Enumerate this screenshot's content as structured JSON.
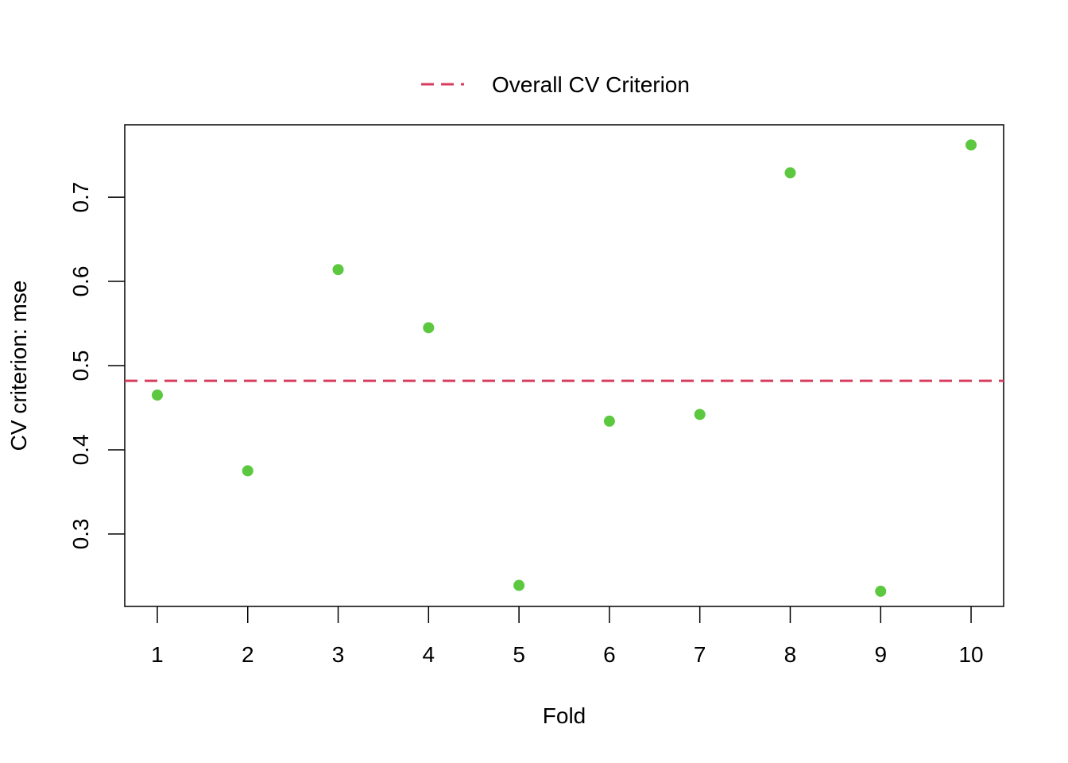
{
  "chart_data": {
    "type": "scatter",
    "title": "",
    "xlabel": "Fold",
    "ylabel": "CV criterion: mse",
    "x": [
      1,
      2,
      3,
      4,
      5,
      6,
      7,
      8,
      9,
      10
    ],
    "xticks": [
      "1",
      "2",
      "3",
      "4",
      "5",
      "6",
      "7",
      "8",
      "9",
      "10"
    ],
    "xlim": [
      0.64,
      10.36
    ],
    "yticks": [
      "0.3",
      "0.4",
      "0.5",
      "0.6",
      "0.7"
    ],
    "ylim": [
      0.214,
      0.786
    ],
    "series": [
      {
        "values": [
          0.465,
          0.375,
          0.614,
          0.545,
          0.239,
          0.434,
          0.442,
          0.729,
          0.232,
          0.762
        ],
        "color": "#5cc83f"
      }
    ],
    "reference_lines": [
      {
        "name": "Overall CV Criterion",
        "orientation": "horizontal",
        "value": 0.482,
        "style": "dashed",
        "color": "#d63c5d"
      }
    ],
    "legend": {
      "placement": "top-center",
      "entries": [
        "Overall CV Criterion"
      ]
    },
    "grid": false
  }
}
